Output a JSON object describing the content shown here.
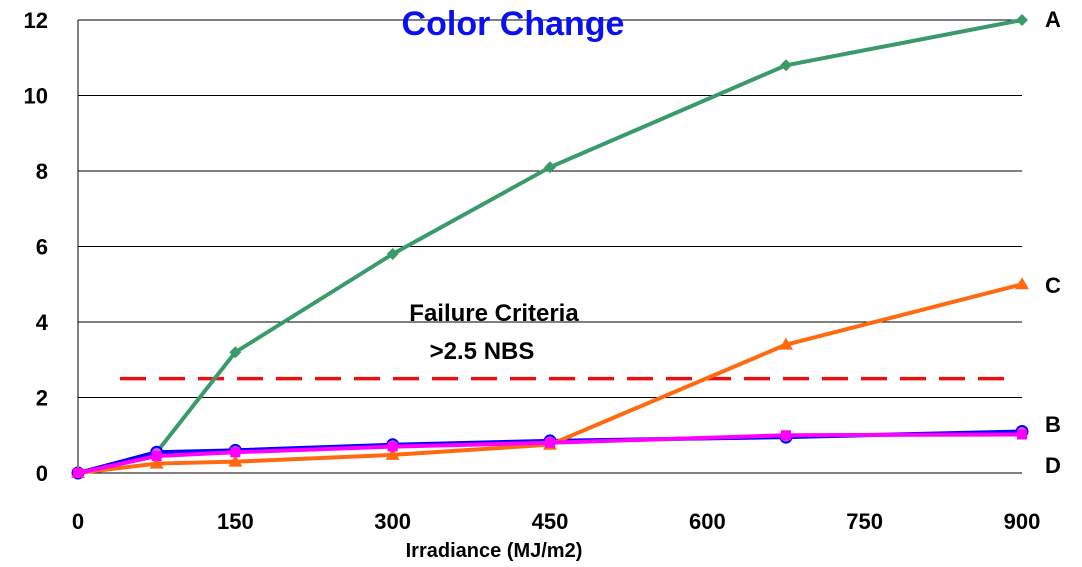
{
  "chart_data": {
    "type": "line",
    "title": "Color Change",
    "xlabel": "Irradiance (MJ/m2)",
    "ylabel": "",
    "xlim": [
      0,
      900
    ],
    "ylim": [
      0,
      12
    ],
    "xticks": [
      0,
      150,
      300,
      450,
      600,
      750,
      900
    ],
    "yticks": [
      0,
      2,
      4,
      6,
      8,
      10,
      12
    ],
    "grid": "horizontal",
    "legend": "inline labels at right end of each series",
    "series": [
      {
        "name": "A",
        "color": "#3a9a6a",
        "marker": "diamond",
        "x": [
          0,
          75,
          150,
          300,
          450,
          675,
          900
        ],
        "y": [
          0,
          0.55,
          3.2,
          5.8,
          8.1,
          10.8,
          12.0
        ]
      },
      {
        "name": "B",
        "color": "#0000ff",
        "marker": "circle",
        "x": [
          0,
          75,
          150,
          300,
          450,
          675,
          900
        ],
        "y": [
          0,
          0.55,
          0.6,
          0.75,
          0.85,
          0.95,
          1.1
        ]
      },
      {
        "name": "C",
        "color": "#ff6a10",
        "marker": "triangle",
        "x": [
          0,
          75,
          150,
          300,
          450,
          675,
          900
        ],
        "y": [
          0,
          0.25,
          0.3,
          0.48,
          0.75,
          3.4,
          5.0
        ]
      },
      {
        "name": "D",
        "color": "#ff00ff",
        "marker": "square",
        "x": [
          0,
          75,
          150,
          300,
          450,
          675,
          900
        ],
        "y": [
          0,
          0.45,
          0.55,
          0.7,
          0.8,
          1.0,
          1.02
        ]
      }
    ],
    "threshold": {
      "value": 2.5,
      "color": "#e81010",
      "style": "dashed",
      "label_line1": "Failure Criteria",
      "label_line2": ">2.5 NBS"
    }
  },
  "colors": {
    "title": "#0a10f0",
    "grid": "#000000"
  }
}
